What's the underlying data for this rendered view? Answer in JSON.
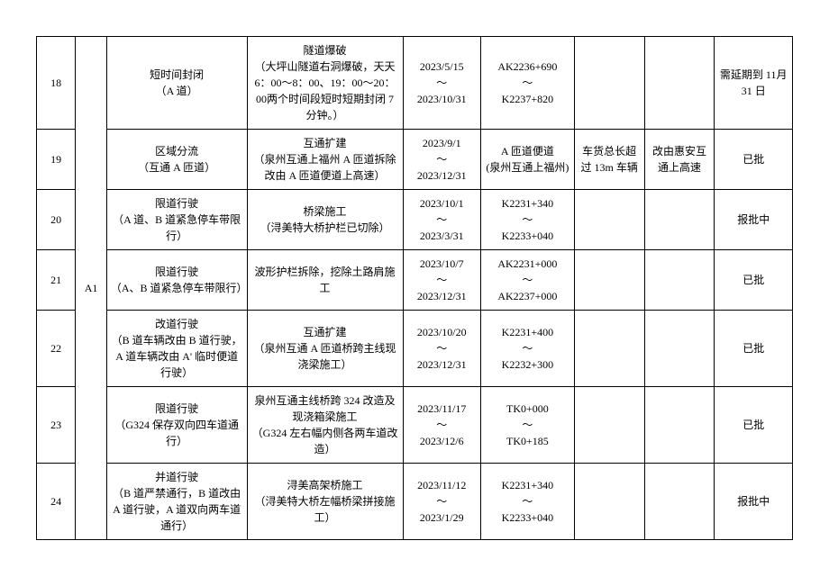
{
  "road": "A1",
  "rows": [
    {
      "idx": "18",
      "restriction": "短时间封闭\n（A 道）",
      "reason": "隧道爆破\n（大坪山隧道右洞爆破，天天 6：00～8：00、19：00～20：00两个时间段短时短期封闭 7 分钟。）",
      "date": "2023/5/15\n～\n2023/10/31",
      "pile": "AK2236+690\n～\nK2237+820",
      "limit": "",
      "alt": "",
      "status": "需延期到 11月 31 日"
    },
    {
      "idx": "19",
      "restriction": "区域分流\n（互通 A 匝道）",
      "reason": "互通扩建\n（泉州互通上福州 A 匝道拆除改由 A 匝道便道上高速）",
      "date": "2023/9/1\n～\n2023/12/31",
      "pile": "A 匝道便道\n(泉州互通上福州)",
      "limit": "车货总长超过 13m 车辆",
      "alt": "改由惠安互通上高速",
      "status": "已批"
    },
    {
      "idx": "20",
      "restriction": "限道行驶\n（A 道、B 道紧急停车带限行）",
      "reason": "桥梁施工\n（浔美特大桥护栏已切除）",
      "date": "2023/10/1\n～\n2023/3/31",
      "pile": "K2231+340\n～\nK2233+040",
      "limit": "",
      "alt": "",
      "status": "报批中"
    },
    {
      "idx": "21",
      "restriction": "限道行驶\n（A、B 道紧急停车带限行）",
      "reason": "波形护栏拆除，挖除土路肩施工",
      "date": "2023/10/7\n～\n2023/12/31",
      "pile": "AK2231+000\n～\nAK2237+000",
      "limit": "",
      "alt": "",
      "status": "已批"
    },
    {
      "idx": "22",
      "restriction": "改道行驶\n（B 道车辆改由 B 道行驶，A 道车辆改由 A' 临时便道行驶）",
      "reason": "互通扩建\n（泉州互通 A 匝道桥跨主线现浇梁施工）",
      "date": "2023/10/20\n～\n2023/12/31",
      "pile": "K2231+400\n～\nK2232+300",
      "limit": "",
      "alt": "",
      "status": "已批"
    },
    {
      "idx": "23",
      "restriction": "限道行驶\n（G324 保存双向四车道通行）",
      "reason": "泉州互通主线桥跨 324 改造及现浇箱梁施工\n（G324 左右幅内侧各两车道改造）",
      "date": "2023/11/17\n～\n2023/12/6",
      "pile": "TK0+000\n～\nTK0+185",
      "limit": "",
      "alt": "",
      "status": "已批"
    },
    {
      "idx": "24",
      "restriction": "并道行驶\n（B 道严禁通行，B 道改由 A 道行驶，A 道双向两车道通行）",
      "reason": "浔美高架桥施工\n（浔美特大桥左幅桥梁拼接施工）",
      "date": "2023/11/12\n～\n2023/1/29",
      "pile": "K2231+340\n～\nK2233+040",
      "limit": "",
      "alt": "",
      "status": "报批中"
    }
  ]
}
